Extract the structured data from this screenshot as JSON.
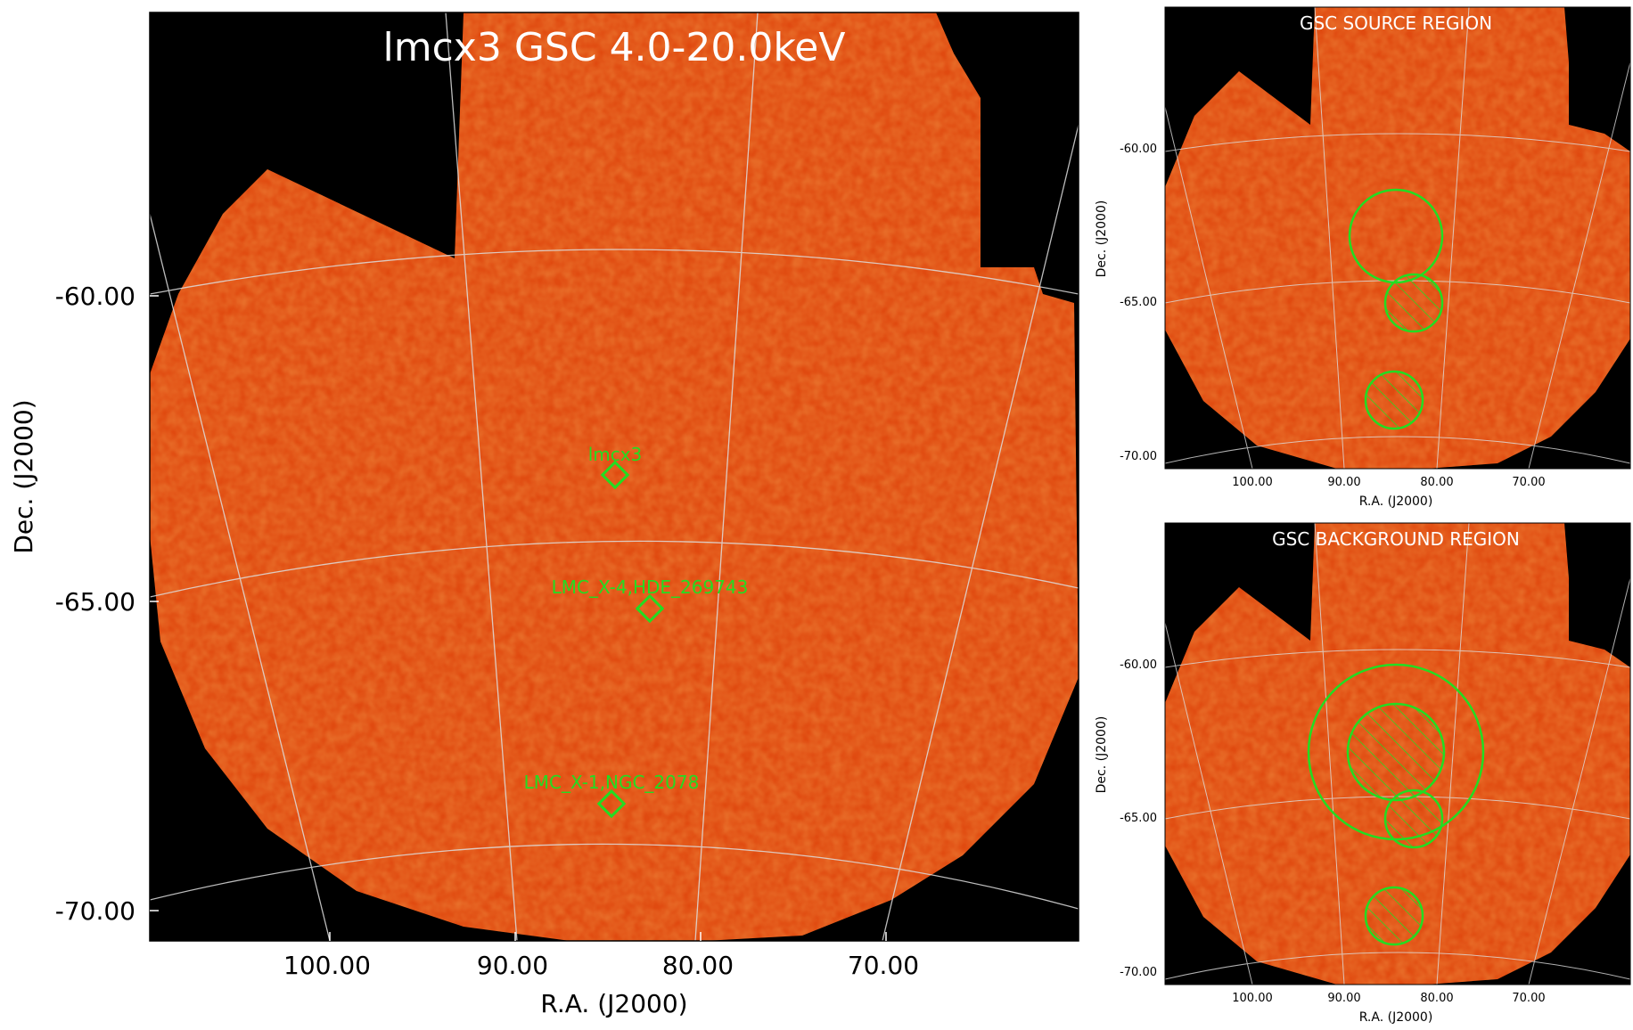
{
  "main_panel": {
    "title": "lmcx3 GSC 4.0-20.0keV",
    "x_ticks": [
      "100.00",
      "90.00",
      "80.00",
      "70.00"
    ],
    "y_ticks": [
      "-60.00",
      "-65.00",
      "-70.00"
    ],
    "xlabel": "R.A. (J2000)",
    "ylabel": "Dec. (J2000)",
    "sources": [
      {
        "label": "lmcx3"
      },
      {
        "label": "LMC_X-4,HDE_269743"
      },
      {
        "label": "LMC_X-1,NGC_2078"
      }
    ]
  },
  "source_panel": {
    "title": "GSC SOURCE REGION",
    "x_ticks": [
      "100.00",
      "90.00",
      "80.00",
      "70.00"
    ],
    "y_ticks": [
      "-60.00",
      "-65.00",
      "-70.00"
    ],
    "xlabel": "R.A. (J2000)",
    "ylabel": "Dec. (J2000)"
  },
  "background_panel": {
    "title": "GSC BACKGROUND REGION",
    "x_ticks": [
      "100.00",
      "90.00",
      "80.00",
      "70.00"
    ],
    "y_ticks": [
      "-60.00",
      "-65.00",
      "-70.00"
    ],
    "xlabel": "R.A. (J2000)",
    "ylabel": "Dec. (J2000)"
  },
  "colors": {
    "image_fill": "#e04a10",
    "region_green": "#22dd22",
    "background": "#000000"
  }
}
